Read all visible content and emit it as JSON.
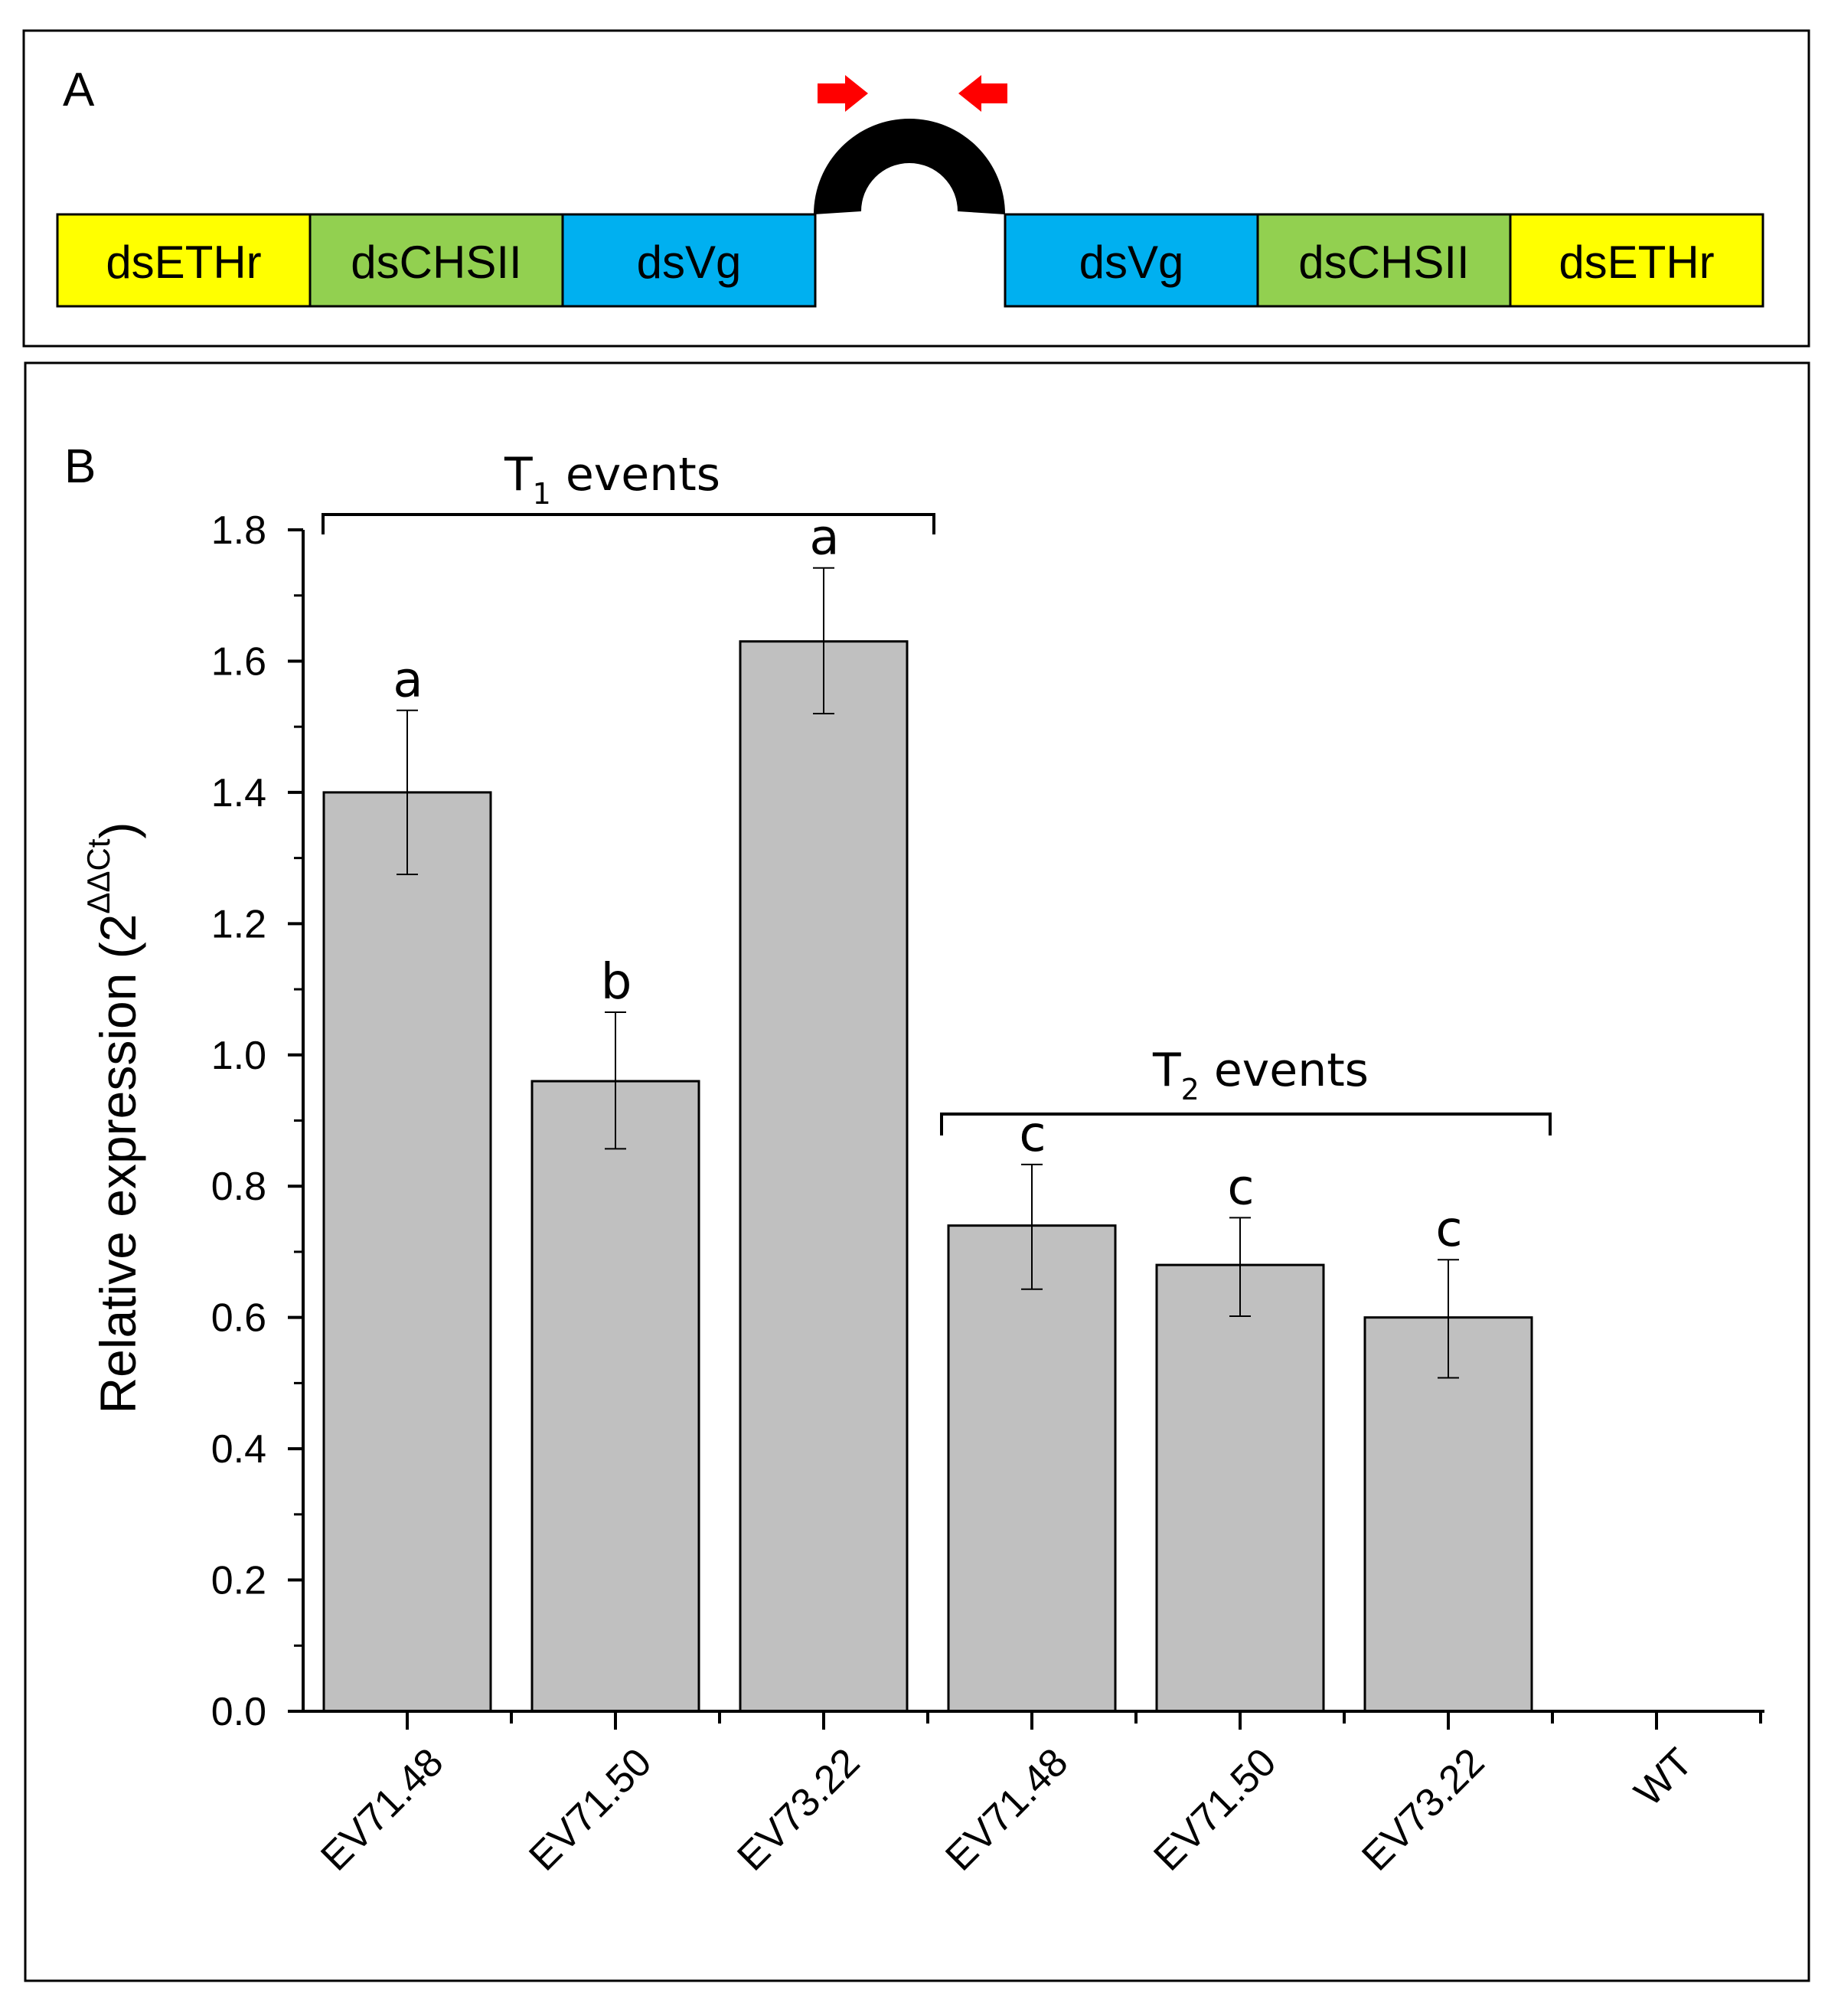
{
  "panel_a": {
    "letter": "A",
    "segments_left": [
      {
        "label": "dsETHr",
        "color": "#ffff00"
      },
      {
        "label": "dsCHSII",
        "color": "#92d050"
      },
      {
        "label": "dsVg",
        "color": "#00b0f0"
      }
    ],
    "segments_right": [
      {
        "label": "dsVg",
        "color": "#00b0f0"
      },
      {
        "label": "dsCHSII",
        "color": "#92d050"
      },
      {
        "label": "dsETHr",
        "color": "#ffff00"
      }
    ],
    "loop_color": "#000000",
    "primer_color": "#ff0000"
  },
  "panel_b": {
    "letter": "B",
    "group1": {
      "main": "T",
      "sub": "1",
      "rest": " events"
    },
    "group2": {
      "main": "T",
      "sub": "2",
      "rest": " events"
    },
    "ylabel": {
      "main": "Relative expression (2",
      "sup": "ΔΔCt",
      "close": ")"
    }
  },
  "chart_data": {
    "type": "bar",
    "title": "",
    "xlabel": "",
    "ylabel": "Relative expression (2^ΔΔCt)",
    "ylim": [
      0,
      1.8
    ],
    "yticks": [
      "0.0",
      "0.2",
      "0.4",
      "0.6",
      "0.8",
      "1.0",
      "1.2",
      "1.4",
      "1.6",
      "1.8"
    ],
    "categories": [
      "EV71.48",
      "EV71.50",
      "EV73.22",
      "EV71.48",
      "EV71.50",
      "EV73.22",
      "WT"
    ],
    "values": [
      1.4,
      0.96,
      1.63,
      0.74,
      0.68,
      0.6,
      null
    ],
    "error_low": [
      1.275,
      0.857,
      1.52,
      0.643,
      0.602,
      0.508,
      null
    ],
    "error_high": [
      1.525,
      1.065,
      1.742,
      0.833,
      0.752,
      0.688,
      null
    ],
    "significance": [
      "a",
      "b",
      "a",
      "c",
      "c",
      "c",
      ""
    ],
    "bar_color": "#c0c0c0",
    "groups": [
      {
        "label": "T1 events",
        "from": 0,
        "to": 2
      },
      {
        "label": "T2 events",
        "from": 3,
        "to": 5
      }
    ],
    "legend": "none",
    "grid": false
  }
}
